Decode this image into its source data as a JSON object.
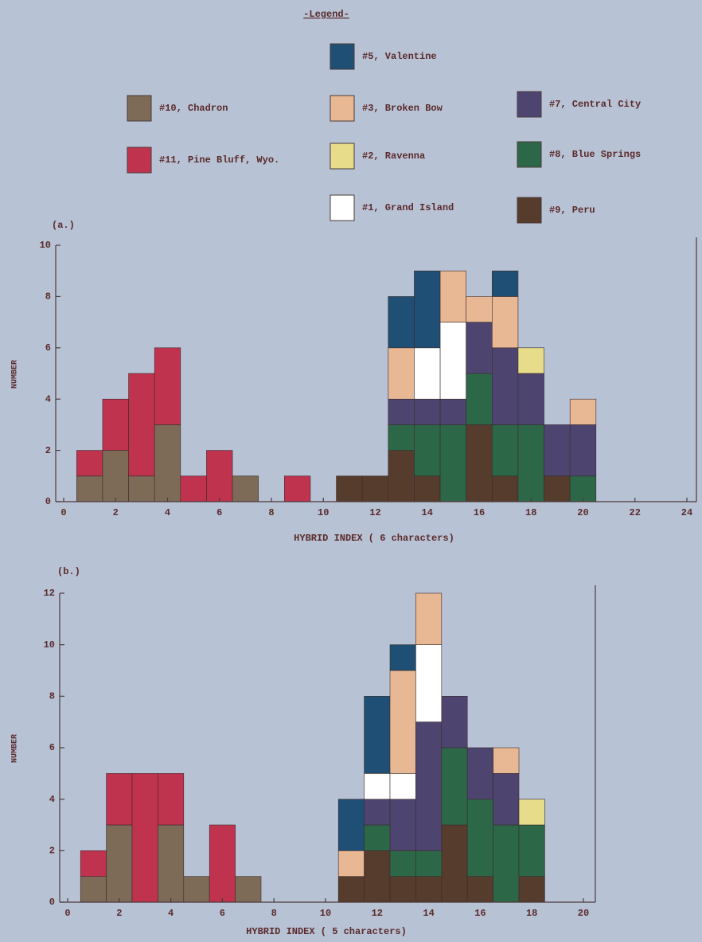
{
  "chart_data": [
    {
      "type": "bar",
      "stacked": true,
      "label": "(a.)",
      "legend_title": "-Legend-",
      "xlabel": "HYBRID INDEX ( 6 characters)",
      "ylabel": "NUMBER",
      "x": [
        1,
        2,
        3,
        4,
        5,
        6,
        7,
        8,
        9,
        10,
        11,
        12,
        13,
        14,
        15,
        16,
        17,
        18,
        19,
        20
      ],
      "xlim": [
        0,
        24
      ],
      "xticks": [
        0,
        2,
        4,
        6,
        8,
        10,
        12,
        14,
        16,
        18,
        20,
        22,
        24
      ],
      "ylim": [
        0,
        10
      ],
      "yticks": [
        0,
        2,
        4,
        6,
        8,
        10
      ],
      "series": [
        {
          "name": "#10, Chadron",
          "color": "#7d6b57",
          "values": [
            1,
            2,
            1,
            3,
            0,
            0,
            1,
            0,
            0,
            0,
            0,
            0,
            0,
            0,
            0,
            0,
            0,
            0,
            0,
            0
          ]
        },
        {
          "name": "#11, Pine Bluff, Wyo.",
          "color": "#c0334f",
          "values": [
            1,
            2,
            4,
            3,
            1,
            2,
            0,
            0,
            1,
            0,
            0,
            0,
            0,
            0,
            0,
            0,
            0,
            0,
            0,
            0
          ]
        },
        {
          "name": "#9, Peru",
          "color": "#553c2c",
          "values": [
            0,
            0,
            0,
            0,
            0,
            0,
            0,
            0,
            0,
            0,
            1,
            1,
            2,
            1,
            0,
            3,
            1,
            0,
            1,
            0
          ]
        },
        {
          "name": "#8, Blue Springs",
          "color": "#2c6848",
          "values": [
            0,
            0,
            0,
            0,
            0,
            0,
            0,
            0,
            0,
            0,
            0,
            0,
            1,
            2,
            3,
            2,
            2,
            3,
            0,
            1
          ]
        },
        {
          "name": "#7, Central City",
          "color": "#4e4470",
          "values": [
            0,
            0,
            0,
            0,
            0,
            0,
            0,
            0,
            0,
            0,
            0,
            0,
            1,
            1,
            1,
            2,
            3,
            2,
            2,
            2
          ]
        },
        {
          "name": "#1, Grand Island",
          "color": "#ffffff",
          "values": [
            0,
            0,
            0,
            0,
            0,
            0,
            0,
            0,
            0,
            0,
            0,
            0,
            0,
            2,
            3,
            0,
            0,
            0,
            0,
            0
          ]
        },
        {
          "name": "#2, Ravenna",
          "color": "#e6dc8a",
          "values": [
            0,
            0,
            0,
            0,
            0,
            0,
            0,
            0,
            0,
            0,
            0,
            0,
            0,
            0,
            0,
            0,
            0,
            1,
            0,
            0
          ]
        },
        {
          "name": "#3, Broken Bow",
          "color": "#e8b895",
          "values": [
            0,
            0,
            0,
            0,
            0,
            0,
            0,
            0,
            0,
            0,
            0,
            0,
            2,
            0,
            2,
            1,
            2,
            0,
            0,
            1
          ]
        },
        {
          "name": "#5, Valentine",
          "color": "#1f4f74",
          "values": [
            0,
            0,
            0,
            0,
            0,
            0,
            0,
            0,
            0,
            0,
            0,
            0,
            2,
            3,
            0,
            0,
            1,
            0,
            0,
            0
          ]
        }
      ]
    },
    {
      "type": "bar",
      "stacked": true,
      "label": "(b.)",
      "xlabel": "HYBRID INDEX ( 5 characters)",
      "ylabel": "NUMBER",
      "x": [
        1,
        2,
        3,
        4,
        5,
        6,
        7,
        8,
        9,
        10,
        11,
        12,
        13,
        14,
        15,
        16,
        17,
        18
      ],
      "xlim": [
        0,
        20
      ],
      "xticks": [
        0,
        2,
        4,
        6,
        8,
        10,
        12,
        14,
        16,
        18,
        20
      ],
      "ylim": [
        0,
        12
      ],
      "yticks": [
        0,
        2,
        4,
        6,
        8,
        10,
        12
      ],
      "series": [
        {
          "color": "#7d6b57",
          "values": [
            1,
            3,
            0,
            3,
            1,
            0,
            1,
            0,
            0,
            0,
            0,
            0,
            0,
            0,
            0,
            0,
            0,
            0
          ]
        },
        {
          "color": "#c0334f",
          "values": [
            1,
            2,
            5,
            2,
            0,
            3,
            0,
            0,
            0,
            0,
            0,
            0,
            0,
            0,
            0,
            0,
            0,
            0
          ]
        },
        {
          "color": "#553c2c",
          "values": [
            0,
            0,
            0,
            0,
            0,
            0,
            0,
            0,
            0,
            0,
            1,
            2,
            1,
            1,
            3,
            1,
            0,
            1
          ]
        },
        {
          "color": "#2c6848",
          "values": [
            0,
            0,
            0,
            0,
            0,
            0,
            0,
            0,
            0,
            0,
            0,
            1,
            1,
            1,
            3,
            3,
            3,
            2
          ]
        },
        {
          "color": "#4e4470",
          "values": [
            0,
            0,
            0,
            0,
            0,
            0,
            0,
            0,
            0,
            0,
            0,
            1,
            2,
            5,
            2,
            2,
            2,
            0
          ]
        },
        {
          "color": "#ffffff",
          "values": [
            0,
            0,
            0,
            0,
            0,
            0,
            0,
            0,
            0,
            0,
            0,
            1,
            1,
            3,
            0,
            0,
            0,
            0
          ]
        },
        {
          "color": "#e6dc8a",
          "values": [
            0,
            0,
            0,
            0,
            0,
            0,
            0,
            0,
            0,
            0,
            0,
            0,
            0,
            0,
            0,
            0,
            0,
            1
          ]
        },
        {
          "color": "#e8b895",
          "values": [
            0,
            0,
            0,
            0,
            0,
            0,
            0,
            0,
            0,
            0,
            1,
            0,
            4,
            2,
            0,
            0,
            1,
            0
          ]
        },
        {
          "color": "#1f4f74",
          "values": [
            0,
            0,
            0,
            0,
            0,
            0,
            0,
            0,
            0,
            0,
            2,
            3,
            1,
            0,
            0,
            0,
            0,
            0
          ]
        }
      ]
    }
  ]
}
